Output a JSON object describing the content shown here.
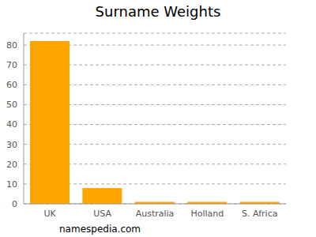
{
  "chart_data": {
    "type": "bar",
    "title": "Surname Weights",
    "categories": [
      "UK",
      "USA",
      "Australia",
      "Holland",
      "S. Africa"
    ],
    "values": [
      82,
      8,
      1,
      1,
      1
    ],
    "color": "#ffa500",
    "ylim": [
      0,
      86
    ],
    "yticks": [
      0,
      10,
      20,
      30,
      40,
      50,
      60,
      70,
      80
    ],
    "grid": true,
    "annotations": [
      "namespedia.com"
    ]
  }
}
